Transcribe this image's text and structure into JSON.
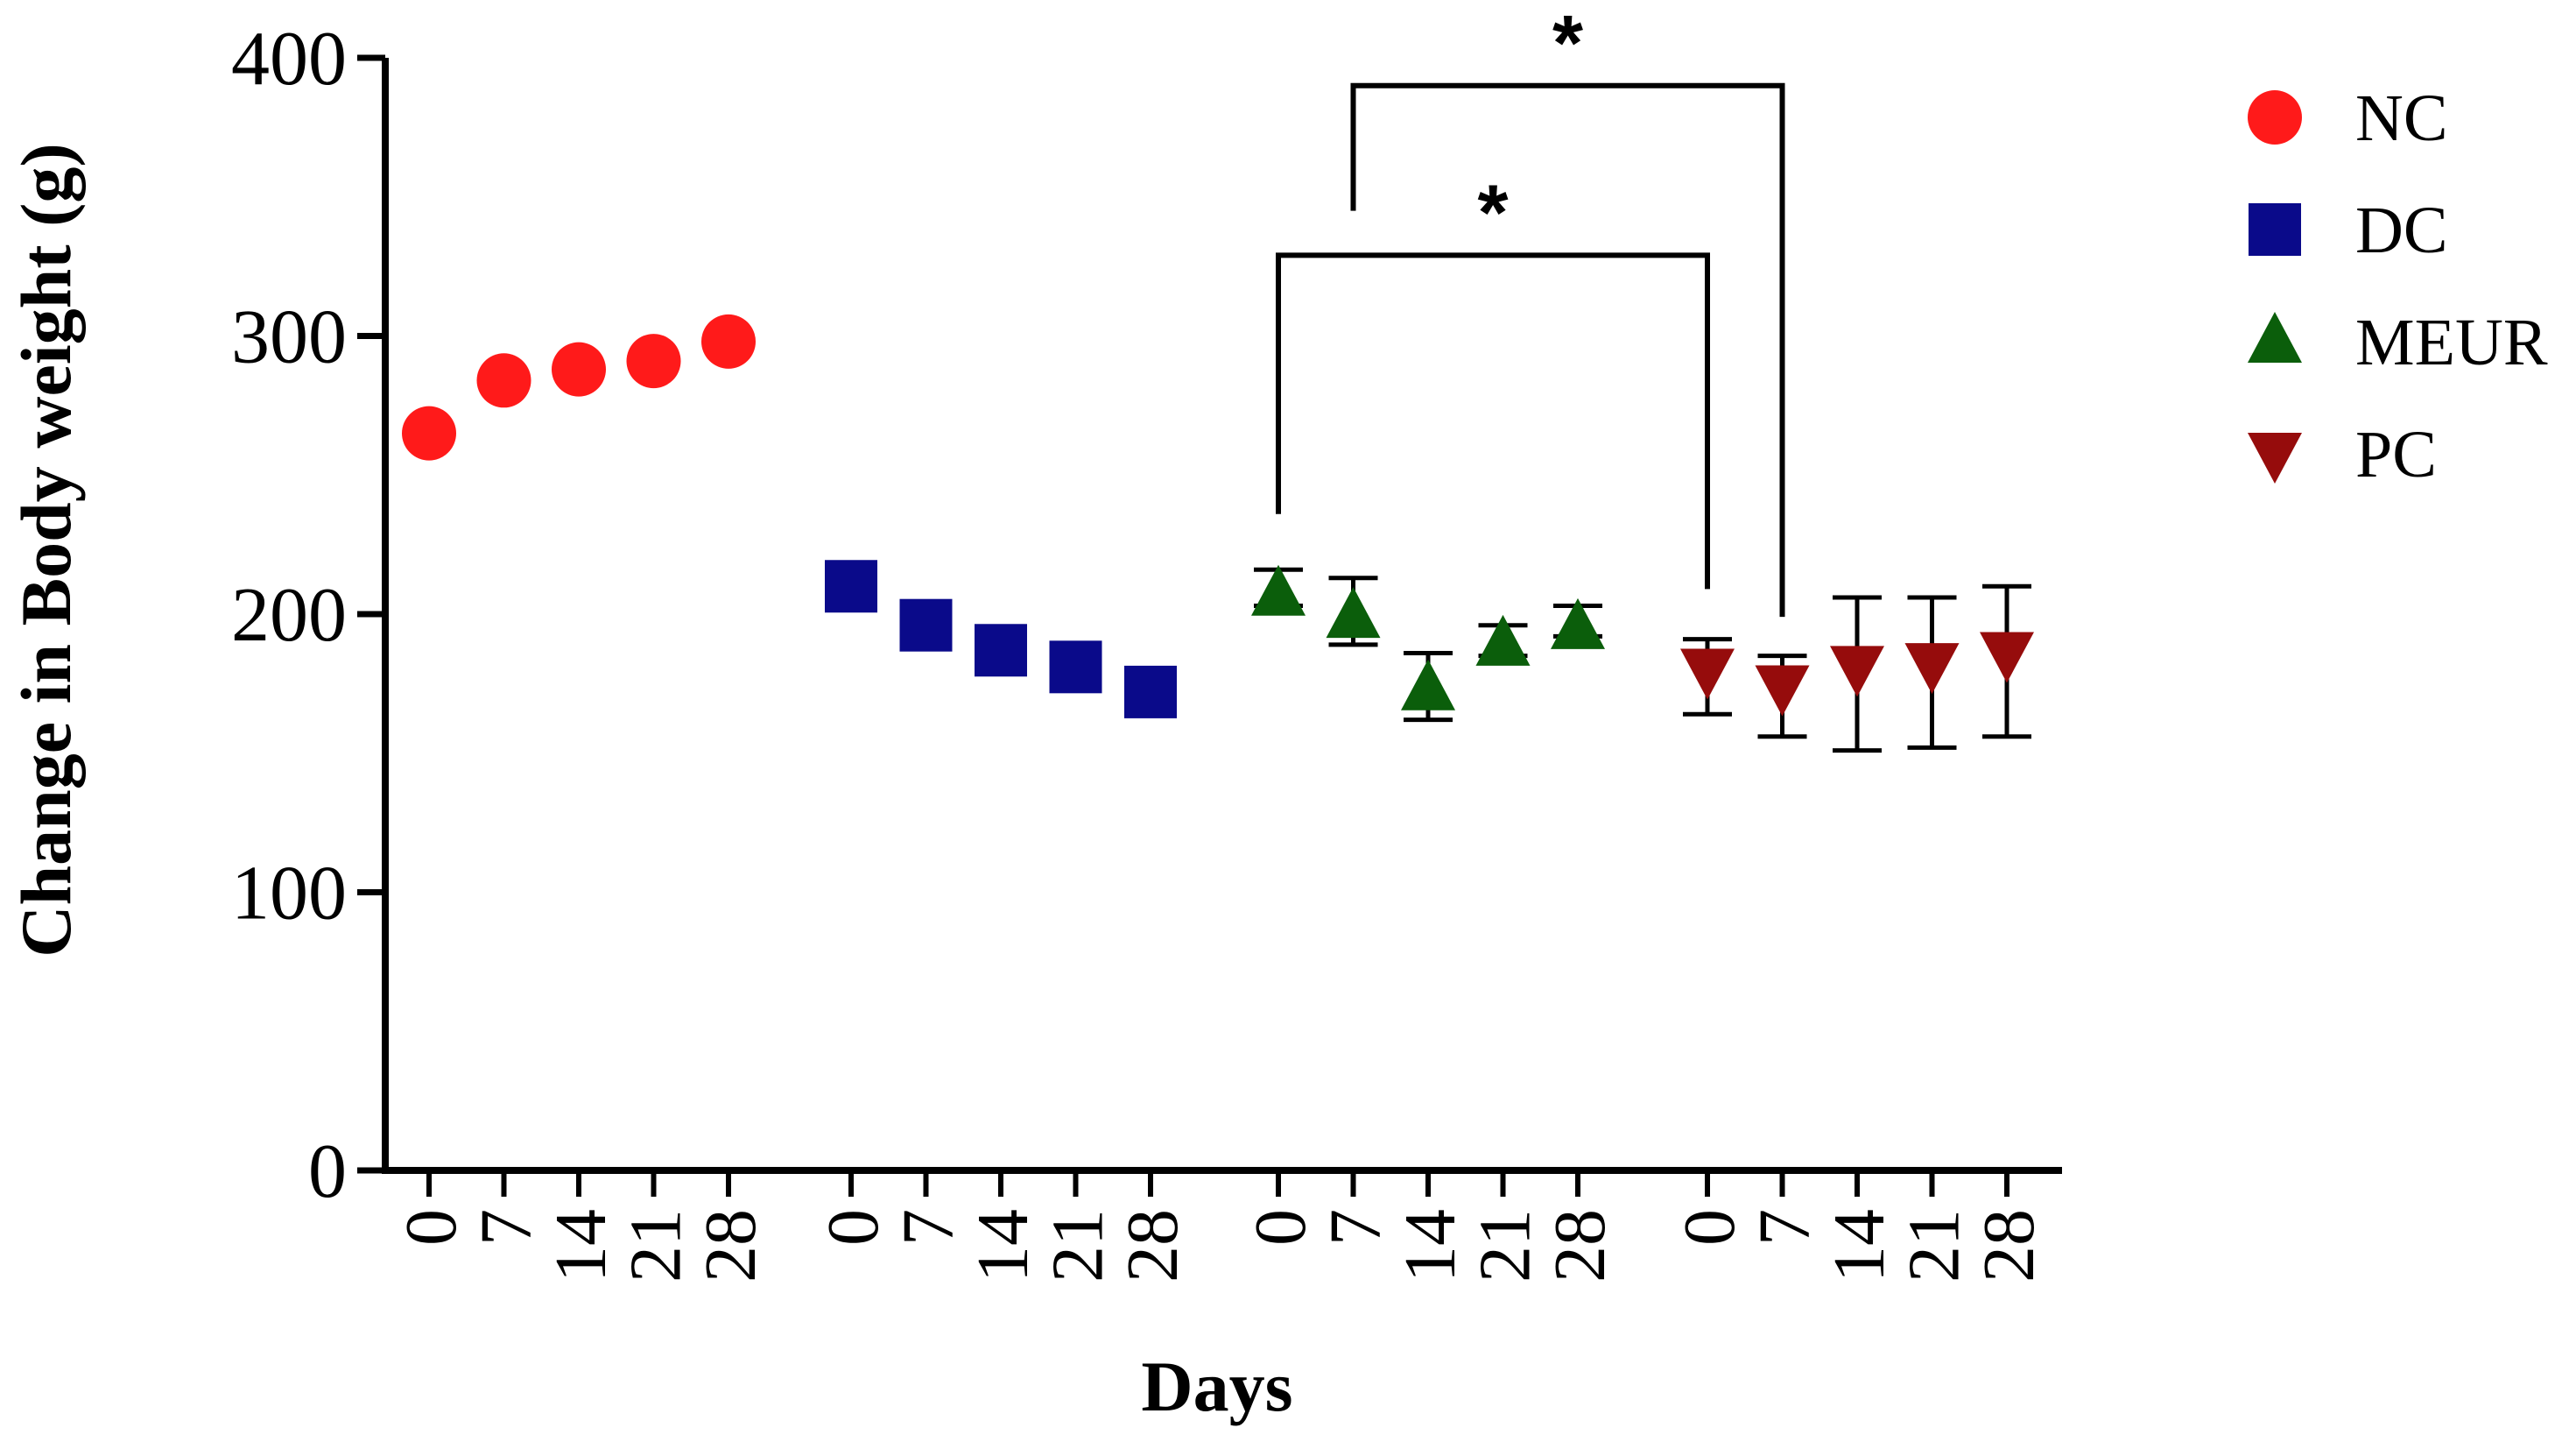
{
  "chart_data": {
    "type": "scatter",
    "title": "",
    "xlabel": "Days",
    "ylabel": "Change in Body weight (g)",
    "ylim": [
      0,
      400
    ],
    "yticks": [
      0,
      100,
      200,
      300,
      400
    ],
    "grid": false,
    "legend_position": "right",
    "categories": [
      "0",
      "7",
      "14",
      "21",
      "28"
    ],
    "series": [
      {
        "name": "NC",
        "marker": "circle",
        "color": "#ff1a1a",
        "values": [
          265,
          284,
          288,
          291,
          298
        ],
        "errors": [
          [
            265,
            265
          ],
          [
            284,
            284
          ],
          [
            286,
            291
          ],
          [
            288,
            293
          ],
          [
            296,
            300
          ]
        ]
      },
      {
        "name": "DC",
        "marker": "square",
        "color": "#0a0a8a",
        "values": [
          210,
          196,
          187,
          181,
          172
        ],
        "errors": [
          [
            210,
            210
          ],
          [
            196,
            196
          ],
          [
            187,
            187
          ],
          [
            181,
            181
          ],
          [
            172,
            172
          ]
        ]
      },
      {
        "name": "MEUR",
        "marker": "triangle-up",
        "color": "#0b5e0b",
        "values": [
          207,
          199,
          173,
          189,
          195
        ],
        "errors": [
          [
            203,
            216
          ],
          [
            189,
            213
          ],
          [
            162,
            186
          ],
          [
            185,
            196
          ],
          [
            192,
            203
          ]
        ]
      },
      {
        "name": "PC",
        "marker": "triangle-down",
        "color": "#960c0c",
        "values": [
          180,
          174,
          181,
          182,
          186
        ],
        "errors": [
          [
            164,
            191
          ],
          [
            156,
            185
          ],
          [
            151,
            206
          ],
          [
            152,
            206
          ],
          [
            156,
            210
          ]
        ]
      }
    ],
    "annotations": [
      {
        "label": "*",
        "from": {
          "series": "MEUR",
          "day": "0"
        },
        "to": {
          "series": "PC",
          "day": "0"
        },
        "bracket_y": 329
      },
      {
        "label": "*",
        "from": {
          "series": "MEUR",
          "day": "7"
        },
        "to": {
          "series": "PC",
          "day": "7"
        },
        "bracket_y": 390
      }
    ]
  }
}
